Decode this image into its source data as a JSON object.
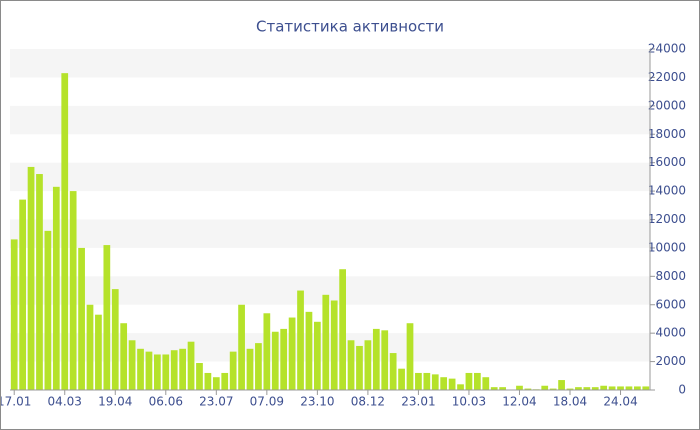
{
  "chart_data": {
    "type": "bar",
    "title": "Статистика активности",
    "categories": [
      "17.01",
      null,
      null,
      null,
      null,
      null,
      "04.03",
      null,
      null,
      null,
      null,
      null,
      "19.04",
      null,
      null,
      null,
      null,
      null,
      "06.06",
      null,
      null,
      null,
      null,
      null,
      "23.07",
      null,
      null,
      null,
      null,
      null,
      "07.09",
      null,
      null,
      null,
      null,
      null,
      "23.10",
      null,
      null,
      null,
      null,
      null,
      "08.12",
      null,
      null,
      null,
      null,
      null,
      "23.01",
      null,
      null,
      null,
      null,
      null,
      "10.03",
      null,
      null,
      null,
      null,
      null,
      "12.04",
      null,
      null,
      null,
      null,
      null,
      "18.04",
      null,
      null,
      null,
      null,
      null,
      "24.04",
      null,
      null,
      null
    ],
    "values": [
      10600,
      13400,
      15700,
      15200,
      11200,
      14300,
      22300,
      14000,
      10000,
      6000,
      5300,
      10200,
      7100,
      4700,
      3500,
      2900,
      2700,
      2500,
      2500,
      2800,
      2900,
      3400,
      1900,
      1200,
      900,
      1200,
      2700,
      6000,
      2900,
      3300,
      5400,
      4100,
      4300,
      5100,
      7000,
      5500,
      4800,
      6700,
      6300,
      8500,
      3500,
      3100,
      3500,
      4300,
      4200,
      2600,
      1500,
      4700,
      1200,
      1200,
      1100,
      900,
      800,
      400,
      1200,
      1200,
      900,
      200,
      200,
      0,
      300,
      100,
      50,
      300,
      100,
      700,
      100,
      200,
      200,
      200,
      300,
      250,
      250,
      250,
      250,
      250
    ],
    "color": "#b5e22a",
    "ylim": [
      0,
      24000
    ],
    "yticks": [
      0,
      2000,
      4000,
      6000,
      8000,
      10000,
      12000,
      14000,
      16000,
      18000,
      20000,
      22000,
      24000
    ],
    "grid": true
  }
}
